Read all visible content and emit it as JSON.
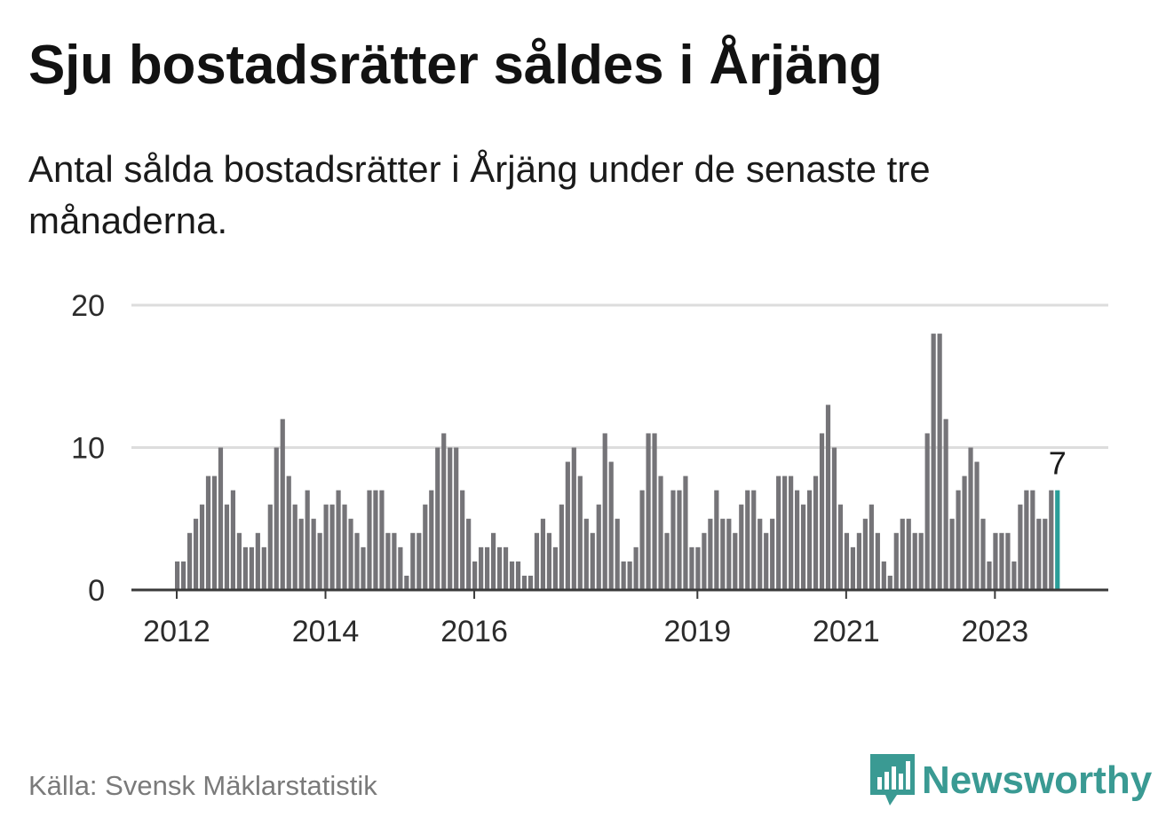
{
  "header": {
    "title": "Sju bostadsrätter såldes i Årjäng",
    "subtitle": "Antal sålda bostadsrätter i Årjäng under de senaste tre månaderna."
  },
  "footer": {
    "source": "Källa: Svensk Mäklarstatistik",
    "brand": "Newsworthy"
  },
  "colors": {
    "bar": "#757478",
    "highlight": "#2a9d98",
    "grid": "#dddddd",
    "baseline": "#3a3a3a",
    "brand": "#3a9a93"
  },
  "icons": {
    "brand_logo": "bar-chart-speech-bubble-icon"
  },
  "chart_data": {
    "type": "bar",
    "title": "Sju bostadsrätter såldes i Årjäng",
    "xlabel": "",
    "ylabel": "",
    "ylim": [
      0,
      20
    ],
    "yticks": [
      0,
      10,
      20
    ],
    "grid": true,
    "x_start": "2012-01",
    "xticks": [
      {
        "label": "2012",
        "index": 0
      },
      {
        "label": "2014",
        "index": 24
      },
      {
        "label": "2016",
        "index": 48
      },
      {
        "label": "2019",
        "index": 84
      },
      {
        "label": "2021",
        "index": 108
      },
      {
        "label": "2023",
        "index": 132
      }
    ],
    "values": [
      2,
      2,
      4,
      5,
      6,
      8,
      8,
      10,
      6,
      7,
      4,
      3,
      3,
      4,
      3,
      6,
      10,
      12,
      8,
      6,
      5,
      7,
      5,
      4,
      6,
      6,
      7,
      6,
      5,
      4,
      3,
      7,
      7,
      7,
      4,
      4,
      3,
      1,
      4,
      4,
      6,
      7,
      10,
      11,
      10,
      10,
      7,
      5,
      2,
      3,
      3,
      4,
      3,
      3,
      2,
      2,
      1,
      1,
      4,
      5,
      4,
      3,
      6,
      9,
      10,
      8,
      5,
      4,
      6,
      11,
      9,
      5,
      2,
      2,
      3,
      7,
      11,
      11,
      8,
      4,
      7,
      7,
      8,
      3,
      3,
      4,
      5,
      7,
      5,
      5,
      4,
      6,
      7,
      7,
      5,
      4,
      5,
      8,
      8,
      8,
      7,
      6,
      7,
      8,
      11,
      13,
      10,
      6,
      4,
      3,
      4,
      5,
      6,
      4,
      2,
      1,
      4,
      5,
      5,
      4,
      4,
      11,
      18,
      18,
      12,
      5,
      7,
      8,
      10,
      9,
      5,
      2,
      4,
      4,
      4,
      2,
      6,
      7,
      7,
      5,
      5,
      7,
      7
    ],
    "highlight_index": 142,
    "highlight_label": "7"
  }
}
